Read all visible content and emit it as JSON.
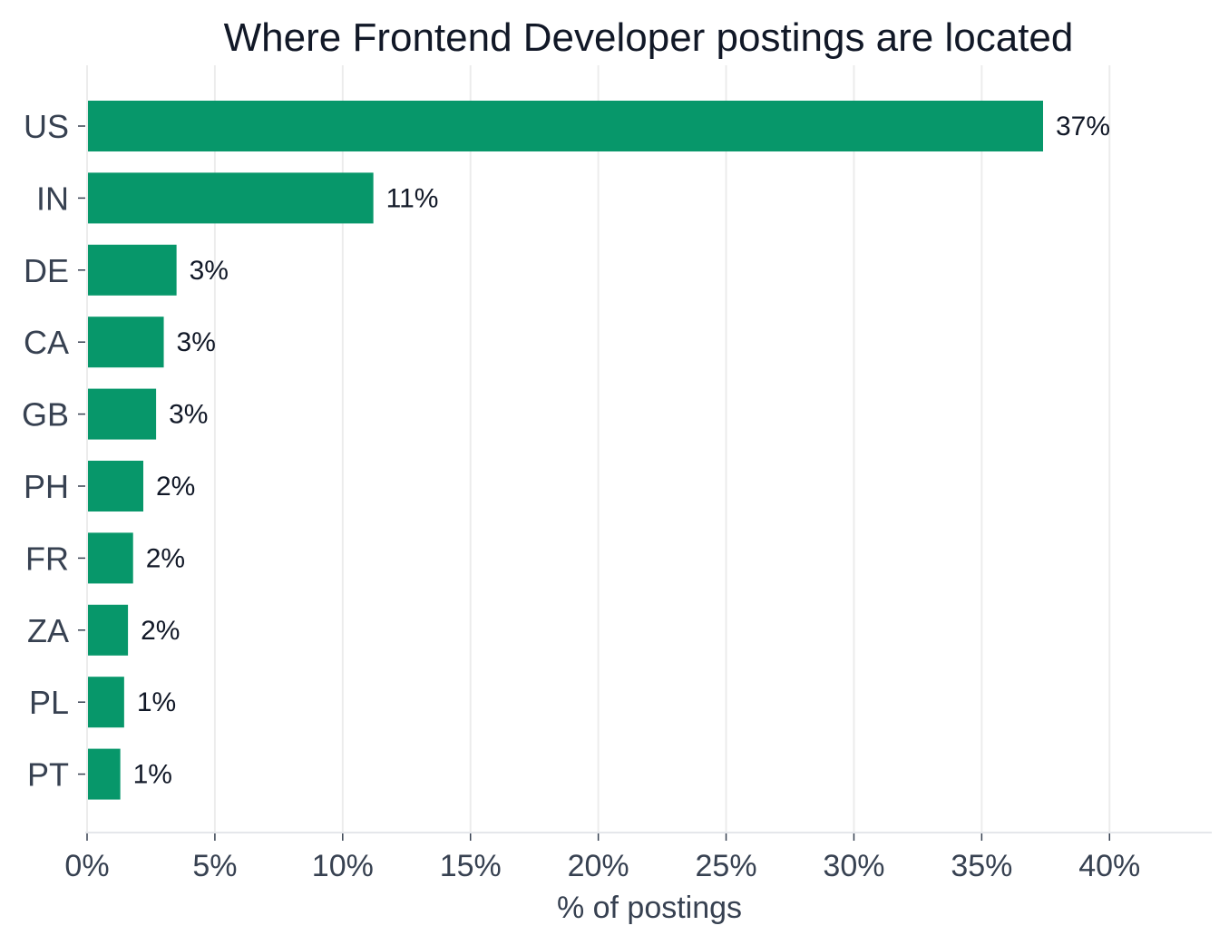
{
  "chart_data": {
    "type": "bar",
    "orientation": "horizontal",
    "title": "Where Frontend Developer postings are located",
    "xlabel": "% of postings",
    "ylabel": "",
    "xlim": [
      0,
      44
    ],
    "x_ticks": [
      0,
      5,
      10,
      15,
      20,
      25,
      30,
      35,
      40
    ],
    "x_tick_labels": [
      "0%",
      "5%",
      "10%",
      "15%",
      "20%",
      "25%",
      "30%",
      "35%",
      "40%"
    ],
    "grid": "vertical",
    "legend": "none",
    "bar_color": "#07976a",
    "categories": [
      "US",
      "IN",
      "DE",
      "CA",
      "GB",
      "PH",
      "FR",
      "ZA",
      "PL",
      "PT"
    ],
    "values": [
      37.4,
      11.2,
      3.5,
      3.0,
      2.7,
      2.2,
      1.8,
      1.6,
      1.45,
      1.3
    ],
    "data_labels": [
      "37%",
      "11%",
      "3%",
      "3%",
      "3%",
      "2%",
      "2%",
      "2%",
      "1%",
      "1%"
    ]
  }
}
